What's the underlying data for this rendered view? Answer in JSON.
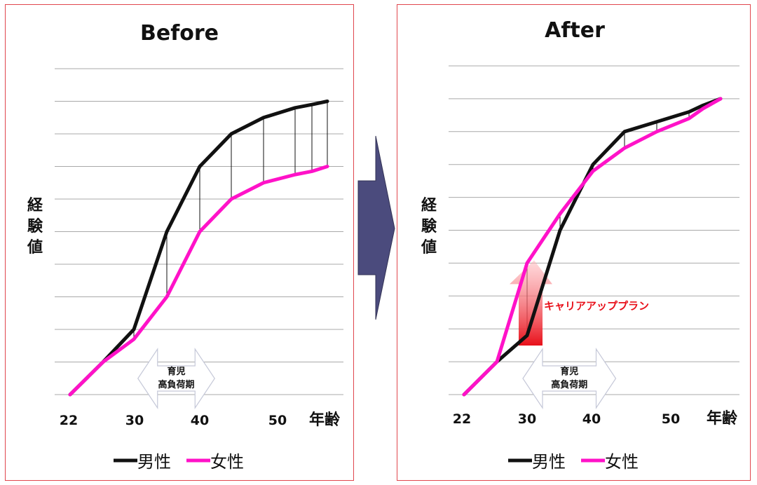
{
  "chart_data": [
    {
      "type": "line",
      "title": "Before",
      "ylabel": "経験値",
      "xlabel": "年齢",
      "x_ticks": [
        "22",
        "30",
        "40",
        "50"
      ],
      "x": [
        22,
        26,
        30,
        34,
        38,
        42,
        46,
        50,
        52,
        54
      ],
      "series": [
        {
          "name": "男性",
          "color": "#111111",
          "values": [
            0,
            1,
            2,
            5,
            7,
            8,
            8.5,
            8.8,
            8.9,
            9
          ]
        },
        {
          "name": "女性",
          "color": "#ff12c8",
          "values": [
            0,
            1,
            1.7,
            3,
            5,
            6,
            6.5,
            6.75,
            6.85,
            7
          ]
        }
      ],
      "ylim": [
        0,
        10
      ],
      "grid": true,
      "gap_lines": true,
      "annotation": {
        "line1": "育児",
        "line2": "高負荷期",
        "x_from": 31,
        "x_to": 39
      },
      "legend_position": "bottom"
    },
    {
      "type": "line",
      "title": "After",
      "ylabel": "経験値",
      "xlabel": "年齢",
      "x_ticks": [
        "22",
        "30",
        "40",
        "50"
      ],
      "x": [
        22,
        26,
        30,
        34,
        38,
        42,
        46,
        50,
        52,
        54
      ],
      "series": [
        {
          "name": "男性",
          "color": "#111111",
          "values": [
            0,
            1,
            1.8,
            5,
            7,
            8,
            8.3,
            8.6,
            8.8,
            9
          ]
        },
        {
          "name": "女性",
          "color": "#ff12c8",
          "values": [
            0,
            1,
            4,
            5.5,
            6.8,
            7.5,
            8,
            8.4,
            8.7,
            9
          ]
        }
      ],
      "ylim": [
        0,
        10
      ],
      "grid": true,
      "gap_lines": true,
      "annotation": {
        "line1": "育児",
        "line2": "高負荷期",
        "x_from": 30,
        "x_to": 40
      },
      "callout": {
        "text": "キャリアアッププラン",
        "color": "#e8101a",
        "arrow_x": 30,
        "arrow_from": 1.6,
        "arrow_to": 4
      },
      "legend_position": "bottom"
    }
  ],
  "transition_arrow": {
    "color": "#4b4b7d",
    "name": "arrow-right"
  }
}
